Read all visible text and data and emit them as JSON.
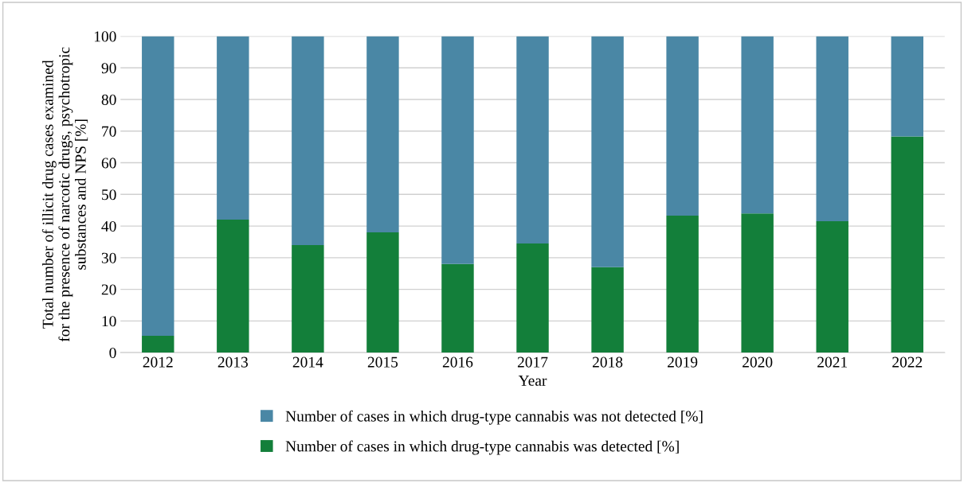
{
  "chart_data": {
    "type": "bar",
    "stacked": true,
    "xlabel": "Year",
    "ylabel": "Total number of illicit drug cases examined\nfor the presence of narcotic drugs, psychotropic\nsubstances and NPS [%]",
    "categories": [
      "2012",
      "2013",
      "2014",
      "2015",
      "2016",
      "2017",
      "2018",
      "2019",
      "2020",
      "2021",
      "2022"
    ],
    "series": [
      {
        "name": "Number of cases in which drug-type cannabis was detected [%]",
        "color": "#137f3a",
        "values": [
          5.3,
          42,
          34,
          38,
          28,
          34.5,
          27,
          43.3,
          44,
          41.5,
          68.3
        ]
      },
      {
        "name": "Number of cases in which drug-type cannabis was not detected [%]",
        "color": "#4a87a5",
        "values": [
          94.7,
          58,
          66,
          62,
          72,
          65.5,
          73,
          56.7,
          56,
          58.5,
          31.7
        ]
      }
    ],
    "ylim": [
      0,
      100
    ],
    "yticks": [
      0,
      10,
      20,
      30,
      40,
      50,
      60,
      70,
      80,
      90,
      100
    ],
    "grid": "y",
    "legend": "bottom"
  }
}
